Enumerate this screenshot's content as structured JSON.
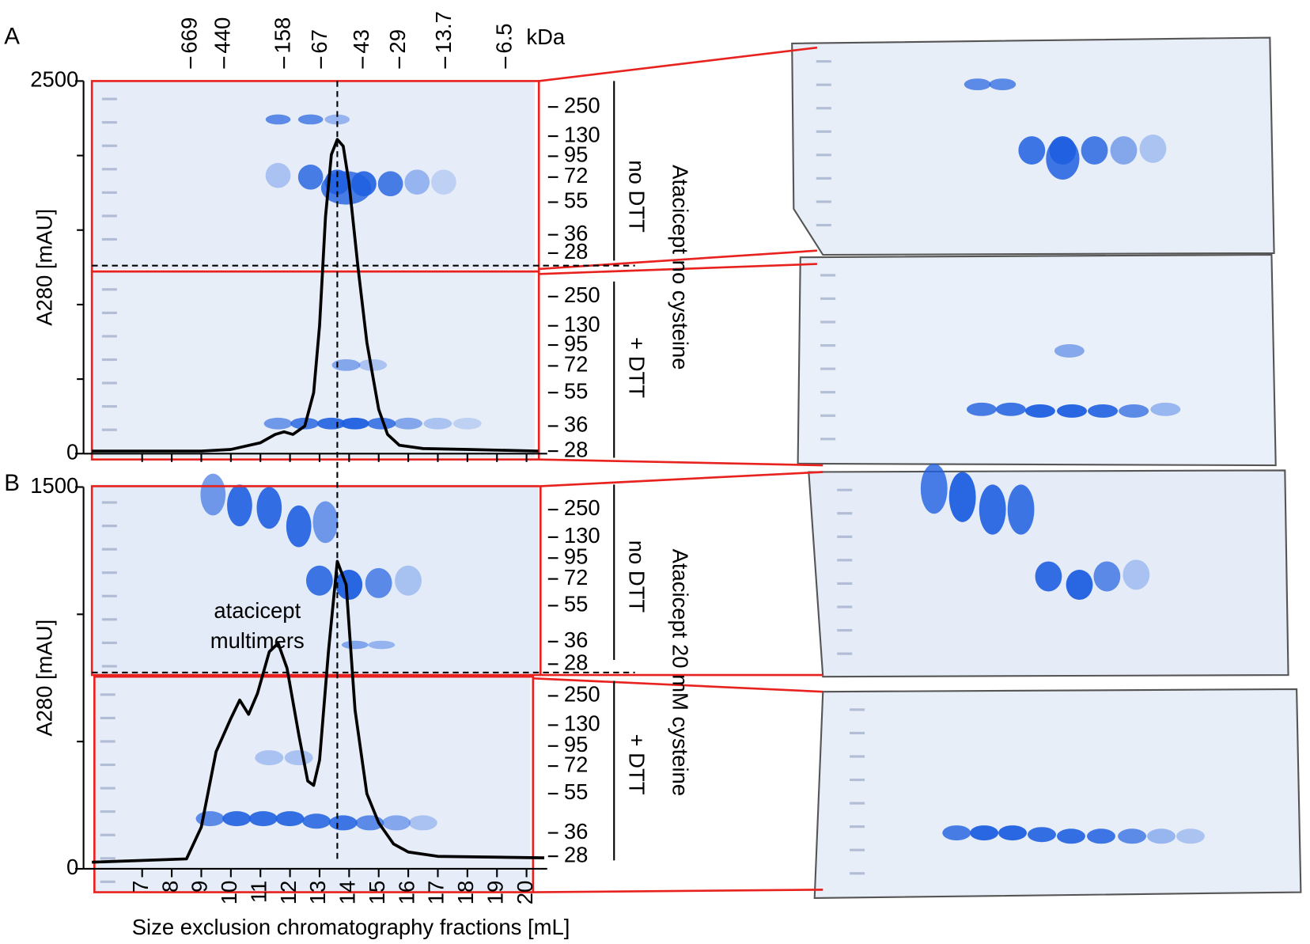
{
  "figure": {
    "side_labels": [
      "Atacicept no cysteine",
      "Atacicept 20 mM cysteine"
    ],
    "no_dtt": "no DTT",
    "plus_dtt": "+ DTT",
    "ladder": [
      250,
      130,
      95,
      72,
      55,
      36,
      28
    ]
  },
  "chart_data": [
    {
      "type": "line",
      "panel": "A",
      "y_label": "A280 [mAU]",
      "x": [
        5.3,
        9,
        10,
        11,
        11.5,
        11.8,
        12.1,
        12.5,
        12.8,
        13.0,
        13.2,
        13.4,
        13.6,
        13.8,
        14.0,
        14.3,
        14.6,
        15.0,
        15.3,
        15.7,
        16.5,
        18,
        20.4
      ],
      "series": [
        {
          "color": "#000000",
          "values": [
            17,
            17,
            28,
            73,
            129,
            146,
            129,
            185,
            409,
            858,
            1587,
            2007,
            2108,
            2063,
            1811,
            1250,
            746,
            297,
            129,
            56,
            34,
            28,
            17
          ]
        }
      ],
      "xlim": [
        5.3,
        20.7
      ],
      "xticks": [
        7,
        8,
        9,
        10,
        11,
        12,
        13,
        14,
        15,
        16,
        17,
        18,
        19,
        20
      ],
      "ylim": [
        0,
        2500
      ],
      "yticks": [
        0,
        2500
      ],
      "yminor": [
        500,
        1000,
        1500,
        2000
      ],
      "reference_x": 13.6,
      "standards": {
        "unit": "kDa",
        "labels": [
          669,
          440,
          158,
          67,
          43,
          29,
          13.7,
          6.5
        ],
        "x": [
          8.64,
          9.77,
          11.8,
          13.05,
          14.46,
          15.7,
          17.25,
          19.29
        ]
      }
    },
    {
      "type": "line",
      "panel": "B",
      "y_label": "A280 [mAU]",
      "x_label": "Size exclusion chromatography fractions [mL]",
      "x": [
        5.3,
        8.5,
        9.0,
        9.5,
        10.0,
        10.3,
        10.6,
        10.9,
        11.3,
        11.6,
        11.9,
        12.3,
        12.6,
        12.8,
        13.0,
        13.3,
        13.6,
        13.9,
        14.2,
        14.6,
        15.0,
        15.5,
        16.0,
        17,
        20.6
      ],
      "series": [
        {
          "color": "#000000",
          "values": [
            26,
            39,
            164,
            460,
            591,
            663,
            607,
            689,
            853,
            886,
            788,
            525,
            345,
            328,
            427,
            853,
            1208,
            1116,
            624,
            295,
            181,
            98,
            66,
            49,
            43
          ]
        }
      ],
      "xlim": [
        5.3,
        20.7
      ],
      "xticks": [
        7,
        8,
        9,
        10,
        11,
        12,
        13,
        14,
        15,
        16,
        17,
        18,
        19,
        20
      ],
      "ylim": [
        0,
        1500
      ],
      "yticks": [
        0,
        1500
      ],
      "yminor": [
        500,
        1000
      ],
      "annotation_lines": [
        "atacicept",
        "multimers"
      ]
    }
  ]
}
